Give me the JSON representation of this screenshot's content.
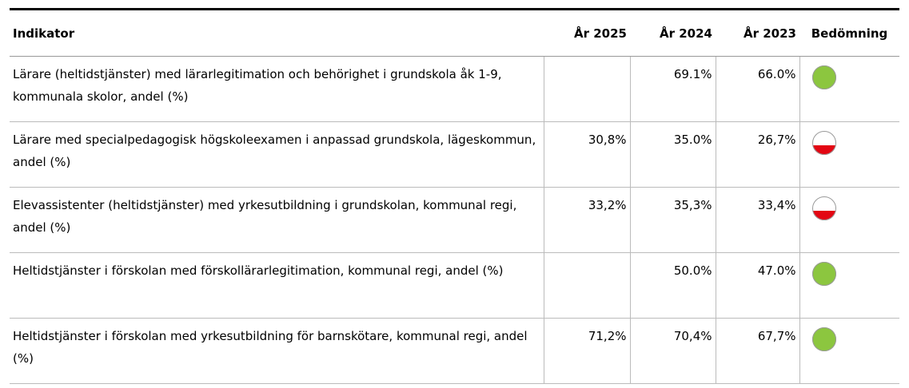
{
  "table": {
    "header": [
      "Indikator",
      "År 2025",
      "År 2024",
      "År 2023",
      "Bedömning"
    ],
    "rows": [
      {
        "indicator": "Lärare (heltidstjänster) med lärarlegitimation och behörighet i grundskola åk 1-9, kommunala skolor, andel (%)",
        "values": [
          null,
          "69.1%",
          "66.0%"
        ],
        "assessment": {
          "color": "#8cc63f",
          "fill": 1
        }
      },
      {
        "indicator": "Lärare med specialpedagogisk högskoleexamen i anpassad grundskola, lägeskommun, andel (%)",
        "values": [
          "30,8%",
          "35.0%",
          "26,7%"
        ],
        "assessment": {
          "color": "#e30613",
          "fill": 0.4
        }
      },
      {
        "indicator": "Elevassistenter (heltidstjänster) med yrkesutbildning i grundskolan, kommunal regi, andel (%)",
        "values": [
          "33,2%",
          "35,3%",
          "33,4%"
        ],
        "assessment": {
          "color": "#e30613",
          "fill": 0.4
        }
      },
      {
        "indicator": "Heltidstjänster i förskolan med förskollärarlegitimation, kommunal regi, andel (%)",
        "values": [
          null,
          "50.0%",
          "47.0%"
        ],
        "assessment": {
          "color": "#8cc63f",
          "fill": 1
        }
      },
      {
        "indicator": "Heltidstjänster i förskolan med yrkesutbildning för barnskötare, kommunal regi, andel (%)",
        "values": [
          "71,2%",
          "70,4%",
          "67,7%"
        ],
        "assessment": {
          "color": "#8cc63f",
          "fill": 1
        }
      }
    ]
  }
}
